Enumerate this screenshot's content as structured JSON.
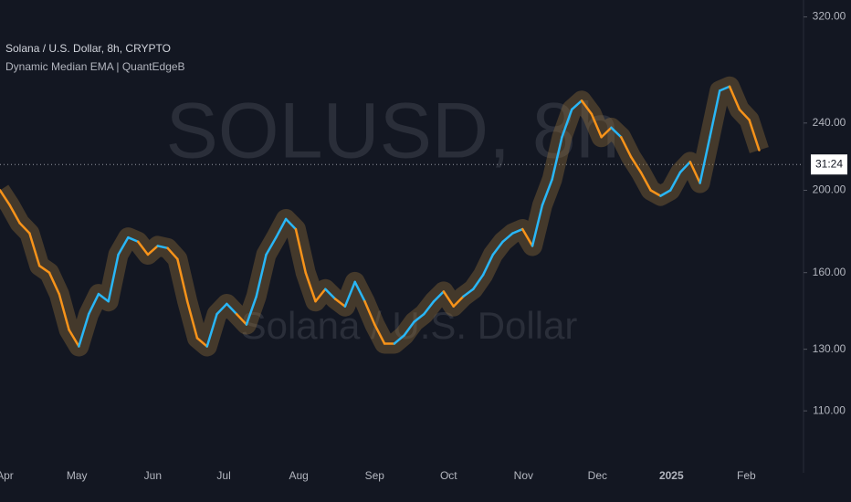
{
  "chart_data": {
    "type": "line",
    "title": "Solana / U.S. Dollar, 8h, CRYPTO",
    "subtitle": "Dynamic Median EMA | QuantEdgeB",
    "watermark": "SOLUSD, 8h",
    "watermark_sub": "Solana / U.S. Dollar",
    "log_scale": true,
    "up_color": "#29b6f6",
    "down_color": "#f7931a",
    "series": [
      {
        "name": "Dynamic Median EMA | QuantEdgeB",
        "values": [
          200,
          192,
          183,
          178,
          163,
          160,
          151,
          137,
          131,
          143,
          151,
          148,
          168,
          176,
          174,
          168,
          172,
          171,
          166,
          148,
          134,
          131,
          143,
          147,
          143,
          139,
          150,
          168,
          176,
          185,
          180,
          160,
          148,
          153,
          149,
          146,
          156,
          148,
          139,
          132,
          132,
          135,
          140,
          143,
          148,
          152,
          146,
          150,
          153,
          159,
          168,
          174,
          178,
          180,
          172,
          192,
          206,
          231,
          249,
          255,
          246,
          231,
          237,
          231,
          219,
          210,
          200,
          197,
          200,
          210,
          216,
          204,
          231,
          262,
          265,
          249,
          242,
          223
        ]
      }
    ],
    "xlim": [
      0,
      81.5
    ],
    "xticks": [
      {
        "value": 0.5,
        "label": "Apr"
      },
      {
        "value": 7.8,
        "label": "May"
      },
      {
        "value": 15.5,
        "label": "Jun"
      },
      {
        "value": 22.7,
        "label": "Jul"
      },
      {
        "value": 30.3,
        "label": "Aug"
      },
      {
        "value": 38,
        "label": "Sep"
      },
      {
        "value": 45.5,
        "label": "Oct"
      },
      {
        "value": 53.1,
        "label": "Nov"
      },
      {
        "value": 60.6,
        "label": "Dec"
      },
      {
        "value": 68.1,
        "label": "2025"
      },
      {
        "value": 75.7,
        "label": "Feb"
      }
    ],
    "ylim": [
      93,
      335
    ],
    "yticks": [
      {
        "value": 110,
        "label": "110.00"
      },
      {
        "value": 130,
        "label": "130.00"
      },
      {
        "value": 160,
        "label": "160.00"
      },
      {
        "value": 200,
        "label": "200.00"
      },
      {
        "value": 240,
        "label": "240.00"
      },
      {
        "value": 320,
        "label": "320.00"
      }
    ],
    "last_price": 214.5,
    "countdown": "31:24"
  }
}
